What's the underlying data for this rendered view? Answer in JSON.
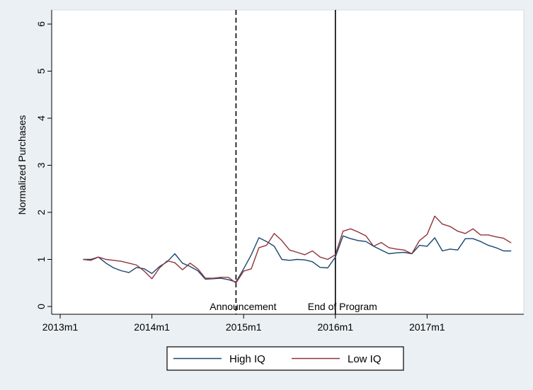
{
  "chart_data": {
    "type": "line",
    "title": "",
    "xlabel": "",
    "ylabel": "Normalized Purchases",
    "xlim": [
      "2013m1",
      "2017m12"
    ],
    "ylim": [
      0,
      6
    ],
    "x_ticks": [
      "2013m1",
      "2014m1",
      "2015m1",
      "2016m1",
      "2017m1"
    ],
    "y_ticks": [
      "0",
      "1",
      "2",
      "3",
      "4",
      "5",
      "6"
    ],
    "grid": false,
    "legend_position": "bottom",
    "vlines": [
      {
        "x": "2014m12",
        "style": "dashed",
        "label": "Announcement"
      },
      {
        "x": "2016m1",
        "style": "solid",
        "label": "End of Program"
      }
    ],
    "x": [
      "2013m4",
      "2013m5",
      "2013m6",
      "2013m7",
      "2013m8",
      "2013m9",
      "2013m10",
      "2013m11",
      "2013m12",
      "2014m1",
      "2014m2",
      "2014m3",
      "2014m4",
      "2014m5",
      "2014m6",
      "2014m7",
      "2014m8",
      "2014m9",
      "2014m10",
      "2014m11",
      "2014m12",
      "2015m1",
      "2015m2",
      "2015m3",
      "2015m4",
      "2015m5",
      "2015m6",
      "2015m7",
      "2015m8",
      "2015m9",
      "2015m10",
      "2015m11",
      "2015m12",
      "2016m1",
      "2016m2",
      "2016m3",
      "2016m4",
      "2016m5",
      "2016m6",
      "2016m7",
      "2016m8",
      "2016m9",
      "2016m10",
      "2016m11",
      "2016m12",
      "2017m1",
      "2017m2",
      "2017m3",
      "2017m4",
      "2017m5",
      "2017m6",
      "2017m7",
      "2017m8",
      "2017m9",
      "2017m10",
      "2017m11",
      "2017m12"
    ],
    "series": [
      {
        "name": "High IQ",
        "color": "#1a476f",
        "values": [
          1.0,
          1.0,
          1.05,
          0.92,
          0.82,
          0.76,
          0.72,
          0.83,
          0.8,
          0.7,
          0.85,
          0.95,
          1.12,
          0.92,
          0.85,
          0.76,
          0.58,
          0.59,
          0.6,
          0.57,
          0.52,
          0.8,
          1.1,
          1.46,
          1.38,
          1.28,
          1.0,
          0.98,
          1.0,
          0.99,
          0.95,
          0.83,
          0.82,
          1.05,
          1.5,
          1.44,
          1.4,
          1.38,
          1.28,
          1.2,
          1.12,
          1.14,
          1.15,
          1.12,
          1.3,
          1.28,
          1.46,
          1.18,
          1.22,
          1.2,
          1.44,
          1.44,
          1.38,
          1.3,
          1.25,
          1.18,
          1.18
        ]
      },
      {
        "name": "Low IQ",
        "color": "#90353b",
        "values": [
          1.0,
          0.98,
          1.05,
          1.0,
          0.98,
          0.96,
          0.92,
          0.88,
          0.75,
          0.59,
          0.82,
          0.97,
          0.93,
          0.78,
          0.92,
          0.8,
          0.6,
          0.6,
          0.62,
          0.62,
          0.5,
          0.75,
          0.8,
          1.25,
          1.3,
          1.55,
          1.4,
          1.2,
          1.15,
          1.1,
          1.18,
          1.05,
          1.0,
          1.1,
          1.6,
          1.65,
          1.58,
          1.5,
          1.28,
          1.36,
          1.25,
          1.22,
          1.2,
          1.12,
          1.4,
          1.53,
          1.92,
          1.75,
          1.7,
          1.6,
          1.55,
          1.65,
          1.52,
          1.52,
          1.48,
          1.45,
          1.35
        ]
      }
    ]
  }
}
